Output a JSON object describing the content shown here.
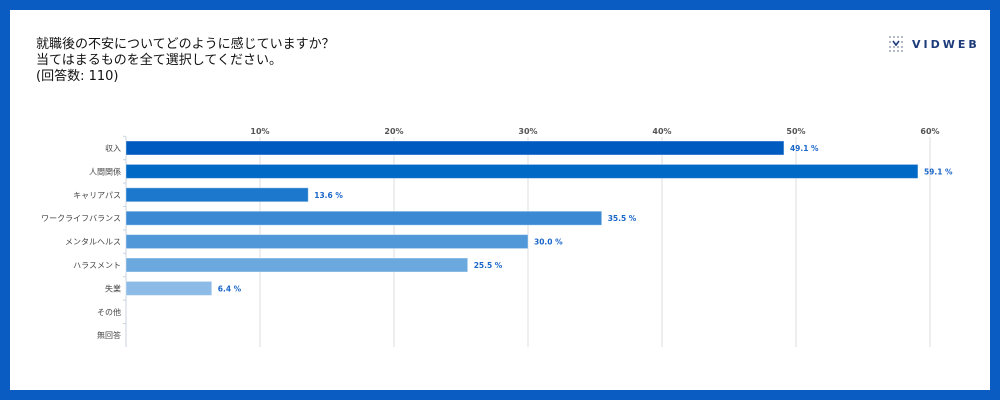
{
  "title_lines": [
    "就職後の不安についてどのように感じていますか？",
    "当てはまるものを全て選択してください。",
    "(回答数: 110)"
  ],
  "logo": {
    "text": "VIDWEB"
  },
  "colors": {
    "frame": "#0b5cc2",
    "label": "#1a66c9"
  },
  "chart_data": {
    "type": "bar",
    "orientation": "horizontal",
    "categories": [
      "収入",
      "人間関係",
      "キャリアパス",
      "ワークライフバランス",
      "メンタルヘルス",
      "ハラスメント",
      "失業",
      "その他",
      "無回答"
    ],
    "values": [
      49.1,
      59.1,
      13.6,
      35.5,
      30.0,
      25.5,
      6.4,
      0,
      0
    ],
    "data_labels": [
      "49.1 %",
      "59.1 %",
      "13.6 %",
      "35.5 %",
      "30.0 %",
      "25.5 %",
      "6.4 %",
      "",
      ""
    ],
    "bar_colors": [
      "#005bc0",
      "#0069c6",
      "#1b78cc",
      "#3a89d2",
      "#5098d8",
      "#6aa8de",
      "#8bbbe6",
      "#a8cdee",
      "#a8cdee"
    ],
    "x_ticks": [
      "10%",
      "20%",
      "30%",
      "40%",
      "50%",
      "60%"
    ],
    "x_tick_values": [
      10,
      20,
      30,
      40,
      50,
      60
    ],
    "xlim": [
      0,
      60.5
    ],
    "grid": true,
    "axis_position": "top"
  }
}
